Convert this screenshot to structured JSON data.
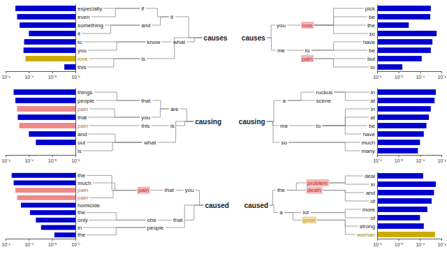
{
  "chart_data": [
    {
      "type": "bar",
      "orientation": "horizontal",
      "log": "x",
      "grid": false,
      "categories": [
        "especially",
        "even",
        "something",
        "it",
        "to",
        "you",
        "love",
        "this"
      ],
      "values": [
        0.00038,
        0.00032,
        0.00025,
        0.0001,
        0.00016,
        0.00017,
        0.00014,
        3e-06
      ],
      "color": "#0000cc",
      "colors": [
        "#0000cc",
        "#0000cc",
        "#0000cc",
        "#0000cc",
        "#0000cc",
        "#0000cc",
        "#ccaa00",
        "#0000cc"
      ],
      "xlim": [
        0.001,
        1e-06
      ],
      "xticks": [
        {
          "value": 0.001,
          "label": "10⁻³"
        },
        {
          "value": 0.0001,
          "label": "10⁻⁴"
        },
        {
          "value": 1e-05,
          "label": "10⁻⁵"
        },
        {
          "value": 1e-06,
          "label": "10⁻⁶"
        }
      ]
    },
    {
      "type": "tree",
      "annotations": [
        {
          "text": "if"
        },
        {
          "text": "and"
        },
        {
          "text": "it"
        },
        {
          "text": "know"
        },
        {
          "text": "what"
        },
        {
          "text": "is"
        },
        {
          "text": "causes"
        },
        {
          "text": "causes"
        },
        {
          "text": "you"
        },
        {
          "text": "lose",
          "color": "#cc2222"
        },
        {
          "text": "me"
        },
        {
          "text": "to"
        },
        {
          "text": "pain",
          "color": "#cc2222"
        }
      ]
    },
    {
      "type": "bar",
      "orientation": "horizontal",
      "log": "x",
      "grid": false,
      "categories": [
        "pick",
        "be",
        "the",
        "so",
        "have",
        "be",
        "but",
        "to"
      ],
      "values": [
        0.00032,
        0.0003,
        3e-05,
        0.0006,
        0.00038,
        0.00032,
        0.00012,
        1.5e-05
      ],
      "color": "#0000cc",
      "colors": [
        "#0000cc",
        "#0000cc",
        "#0000cc",
        "#0000cc",
        "#0000cc",
        "#0000cc",
        "#0000cc",
        "#0000cc"
      ],
      "xlim": [
        1e-06,
        0.001
      ],
      "xticks": [
        {
          "value": 1e-06,
          "label": "10⁻⁶"
        },
        {
          "value": 1e-05,
          "label": "10⁻⁵"
        },
        {
          "value": 0.0001,
          "label": "10⁻⁴"
        },
        {
          "value": 0.001,
          "label": "10⁻³"
        }
      ]
    },
    {
      "type": "bar",
      "orientation": "horizontal",
      "log": "x",
      "grid": false,
      "categories": [
        "things",
        "people",
        "pain",
        "that",
        "pain",
        "and",
        "out",
        "is"
      ],
      "values": [
        0.00045,
        0.00038,
        0.00032,
        0.0003,
        0.00026,
        0.0001,
        5e-05,
        1e-06
      ],
      "color": "#0000cc",
      "colors": [
        "#0000cc",
        "#0000cc",
        "#ee8888",
        "#0000cc",
        "#ee8888",
        "#0000cc",
        "#0000cc",
        "#0000cc"
      ],
      "xlim": [
        0.001,
        1e-06
      ],
      "xticks": [
        {
          "value": 0.001,
          "label": "10⁻³"
        },
        {
          "value": 0.0001,
          "label": "10⁻⁴"
        },
        {
          "value": 1e-05,
          "label": "10⁻⁵"
        },
        {
          "value": 1e-06,
          "label": "10⁻⁶"
        }
      ]
    },
    {
      "type": "tree",
      "annotations": [
        {
          "text": "that"
        },
        {
          "text": "you"
        },
        {
          "text": "this"
        },
        {
          "text": "are"
        },
        {
          "text": "is"
        },
        {
          "text": "what"
        },
        {
          "text": "causing"
        },
        {
          "text": "causing"
        },
        {
          "text": "a"
        },
        {
          "text": "ruckus"
        },
        {
          "text": "scene"
        },
        {
          "text": "me"
        },
        {
          "text": "to"
        },
        {
          "text": "so"
        }
      ]
    },
    {
      "type": "bar",
      "orientation": "horizontal",
      "log": "x",
      "grid": false,
      "categories": [
        "in",
        "at",
        "in",
        "at",
        "be",
        "have",
        "much",
        "many"
      ],
      "values": [
        0.00055,
        0.00048,
        0.00032,
        0.00026,
        0.0002,
        0.00015,
        0.0001,
        8e-05
      ],
      "color": "#0000cc",
      "colors": [
        "#0000cc",
        "#0000cc",
        "#0000cc",
        "#0000cc",
        "#0000cc",
        "#0000cc",
        "#0000cc",
        "#0000cc"
      ],
      "xlim": [
        1e-06,
        0.001
      ],
      "xticks": [
        {
          "value": 1e-06,
          "label": "10⁻⁶"
        },
        {
          "value": 1e-05,
          "label": "10⁻⁵"
        },
        {
          "value": 0.0001,
          "label": "10⁻⁴"
        },
        {
          "value": 0.001,
          "label": "10⁻³"
        }
      ]
    },
    {
      "type": "bar",
      "orientation": "horizontal",
      "log": "x",
      "grid": false,
      "categories": [
        "the",
        "much",
        "pain",
        "pain",
        "homicide",
        "the",
        "only",
        "in",
        "the"
      ],
      "values": [
        0.00055,
        0.00045,
        0.00038,
        0.00032,
        0.00022,
        9e-05,
        5e-05,
        3e-05,
        8e-06
      ],
      "color": "#0000cc",
      "colors": [
        "#0000cc",
        "#0000cc",
        "#ee8888",
        "#ee8888",
        "#0000cc",
        "#0000cc",
        "#0000cc",
        "#0000cc",
        "#0000cc"
      ],
      "xlim": [
        0.001,
        1e-06
      ],
      "xticks": [
        {
          "value": 0.001,
          "label": "10⁻³"
        },
        {
          "value": 0.0001,
          "label": "10⁻⁴"
        },
        {
          "value": 1e-05,
          "label": "10⁻⁵"
        },
        {
          "value": 1e-06,
          "label": "10⁻⁶"
        }
      ]
    },
    {
      "type": "tree",
      "annotations": [
        {
          "text": "pain",
          "color": "#cc2222"
        },
        {
          "text": "that"
        },
        {
          "text": "you"
        },
        {
          "text": "ohe"
        },
        {
          "text": "that"
        },
        {
          "text": "people"
        },
        {
          "text": "caused"
        },
        {
          "text": "caused"
        },
        {
          "text": "the"
        },
        {
          "text": "problem",
          "color": "#cc2222"
        },
        {
          "text": "death",
          "color": "#cc2222"
        },
        {
          "text": "a"
        },
        {
          "text": "lot"
        },
        {
          "text": "good",
          "color": "#cc9900"
        }
      ]
    },
    {
      "type": "bar",
      "orientation": "horizontal",
      "log": "x",
      "grid": false,
      "categories": [
        "deal",
        "in",
        "and",
        "of",
        "more",
        "of",
        "strong",
        "woman"
      ],
      "values": [
        0.00014,
        0.00055,
        0.00045,
        0.00035,
        0.00022,
        0.0001,
        0.00015,
        0.0005
      ],
      "color": "#0000cc",
      "colors": [
        "#0000cc",
        "#0000cc",
        "#0000cc",
        "#0000cc",
        "#0000cc",
        "#0000cc",
        "#0000cc",
        "#ccaa00"
      ],
      "xlim": [
        1e-06,
        0.001
      ],
      "xticks": [
        {
          "value": 1e-06,
          "label": "10⁻⁶"
        },
        {
          "value": 1e-05,
          "label": "10⁻⁵"
        },
        {
          "value": 0.0001,
          "label": "10⁻⁴"
        },
        {
          "value": 0.001,
          "label": "10⁻³"
        }
      ]
    }
  ]
}
